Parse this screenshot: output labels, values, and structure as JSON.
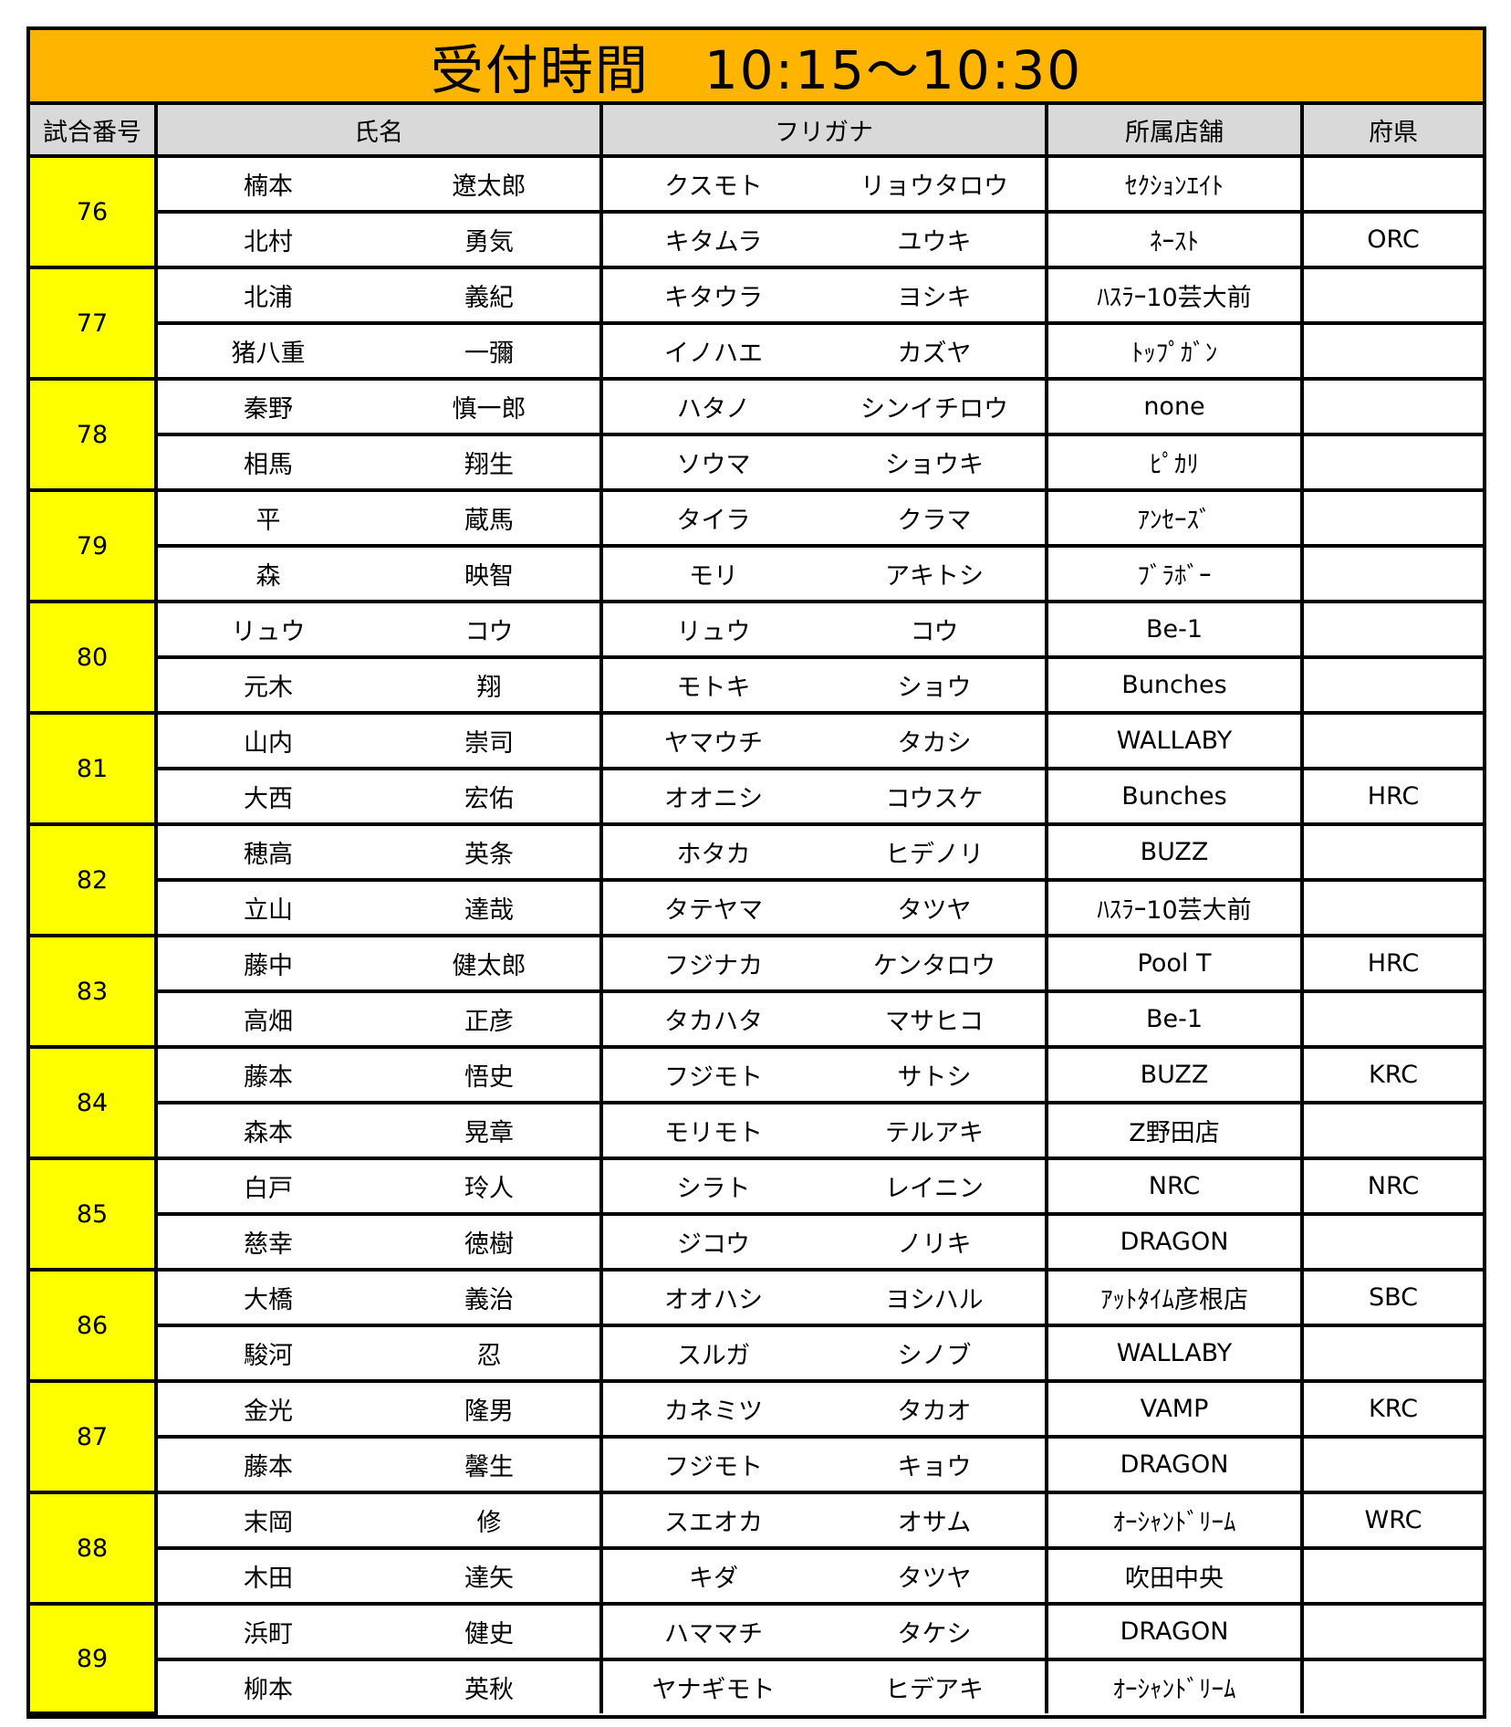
{
  "title": "受付時間　10:15～10:30",
  "headers": {
    "match": "試合番号",
    "name": "氏名",
    "kana": "フリガナ",
    "store": "所属店舗",
    "pref": "府県"
  },
  "colors": {
    "title_bg": "#ffb400",
    "match_bg": "#ffff00",
    "header_bg": "#d9d9d9"
  },
  "matches": [
    {
      "no": "76",
      "players": [
        {
          "last": "楠本",
          "first": "遼太郎",
          "kana_last": "クスモト",
          "kana_first": "リョウタロウ",
          "store": "ｾｸｼｮﾝｴｲﾄ",
          "pref": ""
        },
        {
          "last": "北村",
          "first": "勇気",
          "kana_last": "キタムラ",
          "kana_first": "ユウキ",
          "store": "ﾈｰｽﾄ",
          "pref": "ORC"
        }
      ]
    },
    {
      "no": "77",
      "players": [
        {
          "last": "北浦",
          "first": "義紀",
          "kana_last": "キタウラ",
          "kana_first": "ヨシキ",
          "store": "ﾊｽﾗｰ10芸大前",
          "pref": ""
        },
        {
          "last": "猪八重",
          "first": "一彌",
          "kana_last": "イノハエ",
          "kana_first": "カズヤ",
          "store": "ﾄｯﾌﾟｶﾞﾝ",
          "pref": ""
        }
      ]
    },
    {
      "no": "78",
      "players": [
        {
          "last": "秦野",
          "first": "慎一郎",
          "kana_last": "ハタノ",
          "kana_first": "シンイチロウ",
          "store": "none",
          "pref": ""
        },
        {
          "last": "相馬",
          "first": "翔生",
          "kana_last": "ソウマ",
          "kana_first": "ショウキ",
          "store": "ﾋﾟｶﾘ",
          "pref": ""
        }
      ]
    },
    {
      "no": "79",
      "players": [
        {
          "last": "平",
          "first": "蔵馬",
          "kana_last": "タイラ",
          "kana_first": "クラマ",
          "store": "ｱﾝｾｰｽﾞ",
          "pref": ""
        },
        {
          "last": "森",
          "first": "映智",
          "kana_last": "モリ",
          "kana_first": "アキトシ",
          "store": "ﾌﾞﾗﾎﾞｰ",
          "pref": ""
        }
      ]
    },
    {
      "no": "80",
      "players": [
        {
          "last": "リュウ",
          "first": "コウ",
          "kana_last": "リュウ",
          "kana_first": "コウ",
          "store": "Be-1",
          "pref": ""
        },
        {
          "last": "元木",
          "first": "翔",
          "kana_last": "モトキ",
          "kana_first": "ショウ",
          "store": "Bunches",
          "pref": ""
        }
      ]
    },
    {
      "no": "81",
      "players": [
        {
          "last": "山内",
          "first": "崇司",
          "kana_last": "ヤマウチ",
          "kana_first": "タカシ",
          "store": "WALLABY",
          "pref": ""
        },
        {
          "last": "大西",
          "first": "宏佑",
          "kana_last": "オオニシ",
          "kana_first": "コウスケ",
          "store": "Bunches",
          "pref": "HRC"
        }
      ]
    },
    {
      "no": "82",
      "players": [
        {
          "last": "穂高",
          "first": "英条",
          "kana_last": "ホタカ",
          "kana_first": "ヒデノリ",
          "store": "BUZZ",
          "pref": ""
        },
        {
          "last": "立山",
          "first": "達哉",
          "kana_last": "タテヤマ",
          "kana_first": "タツヤ",
          "store": "ﾊｽﾗｰ10芸大前",
          "pref": ""
        }
      ]
    },
    {
      "no": "83",
      "players": [
        {
          "last": "藤中",
          "first": "健太郎",
          "kana_last": "フジナカ",
          "kana_first": "ケンタロウ",
          "store": "Pool T",
          "pref": "HRC"
        },
        {
          "last": "高畑",
          "first": "正彦",
          "kana_last": "タカハタ",
          "kana_first": "マサヒコ",
          "store": "Be-1",
          "pref": ""
        }
      ]
    },
    {
      "no": "84",
      "players": [
        {
          "last": "藤本",
          "first": "悟史",
          "kana_last": "フジモト",
          "kana_first": "サトシ",
          "store": "BUZZ",
          "pref": "KRC"
        },
        {
          "last": "森本",
          "first": "晃章",
          "kana_last": "モリモト",
          "kana_first": "テルアキ",
          "store": "Z野田店",
          "pref": ""
        }
      ]
    },
    {
      "no": "85",
      "players": [
        {
          "last": "白戸",
          "first": "玲人",
          "kana_last": "シラト",
          "kana_first": "レイニン",
          "store": "NRC",
          "pref": "NRC"
        },
        {
          "last": "慈幸",
          "first": "徳樹",
          "kana_last": "ジコウ",
          "kana_first": "ノリキ",
          "store": "DRAGON",
          "pref": ""
        }
      ]
    },
    {
      "no": "86",
      "players": [
        {
          "last": "大橋",
          "first": "義治",
          "kana_last": "オオハシ",
          "kana_first": "ヨシハル",
          "store": "ｱｯﾄﾀｲﾑ彦根店",
          "pref": "SBC"
        },
        {
          "last": "駿河",
          "first": "忍",
          "kana_last": "スルガ",
          "kana_first": "シノブ",
          "store": "WALLABY",
          "pref": ""
        }
      ]
    },
    {
      "no": "87",
      "players": [
        {
          "last": "金光",
          "first": "隆男",
          "kana_last": "カネミツ",
          "kana_first": "タカオ",
          "store": "VAMP",
          "pref": "KRC"
        },
        {
          "last": "藤本",
          "first": "馨生",
          "kana_last": "フジモト",
          "kana_first": "キョウ",
          "store": "DRAGON",
          "pref": ""
        }
      ]
    },
    {
      "no": "88",
      "players": [
        {
          "last": "末岡",
          "first": "修",
          "kana_last": "スエオカ",
          "kana_first": "オサム",
          "store": "ｵｰｼｬﾝﾄﾞﾘｰﾑ",
          "pref": "WRC"
        },
        {
          "last": "木田",
          "first": "達矢",
          "kana_last": "キダ",
          "kana_first": "タツヤ",
          "store": "吹田中央",
          "pref": ""
        }
      ]
    },
    {
      "no": "89",
      "players": [
        {
          "last": "浜町",
          "first": "健史",
          "kana_last": "ハママチ",
          "kana_first": "タケシ",
          "store": "DRAGON",
          "pref": ""
        },
        {
          "last": "柳本",
          "first": "英秋",
          "kana_last": "ヤナギモト",
          "kana_first": "ヒデアキ",
          "store": "ｵｰｼｬﾝﾄﾞﾘｰﾑ",
          "pref": ""
        }
      ]
    }
  ]
}
